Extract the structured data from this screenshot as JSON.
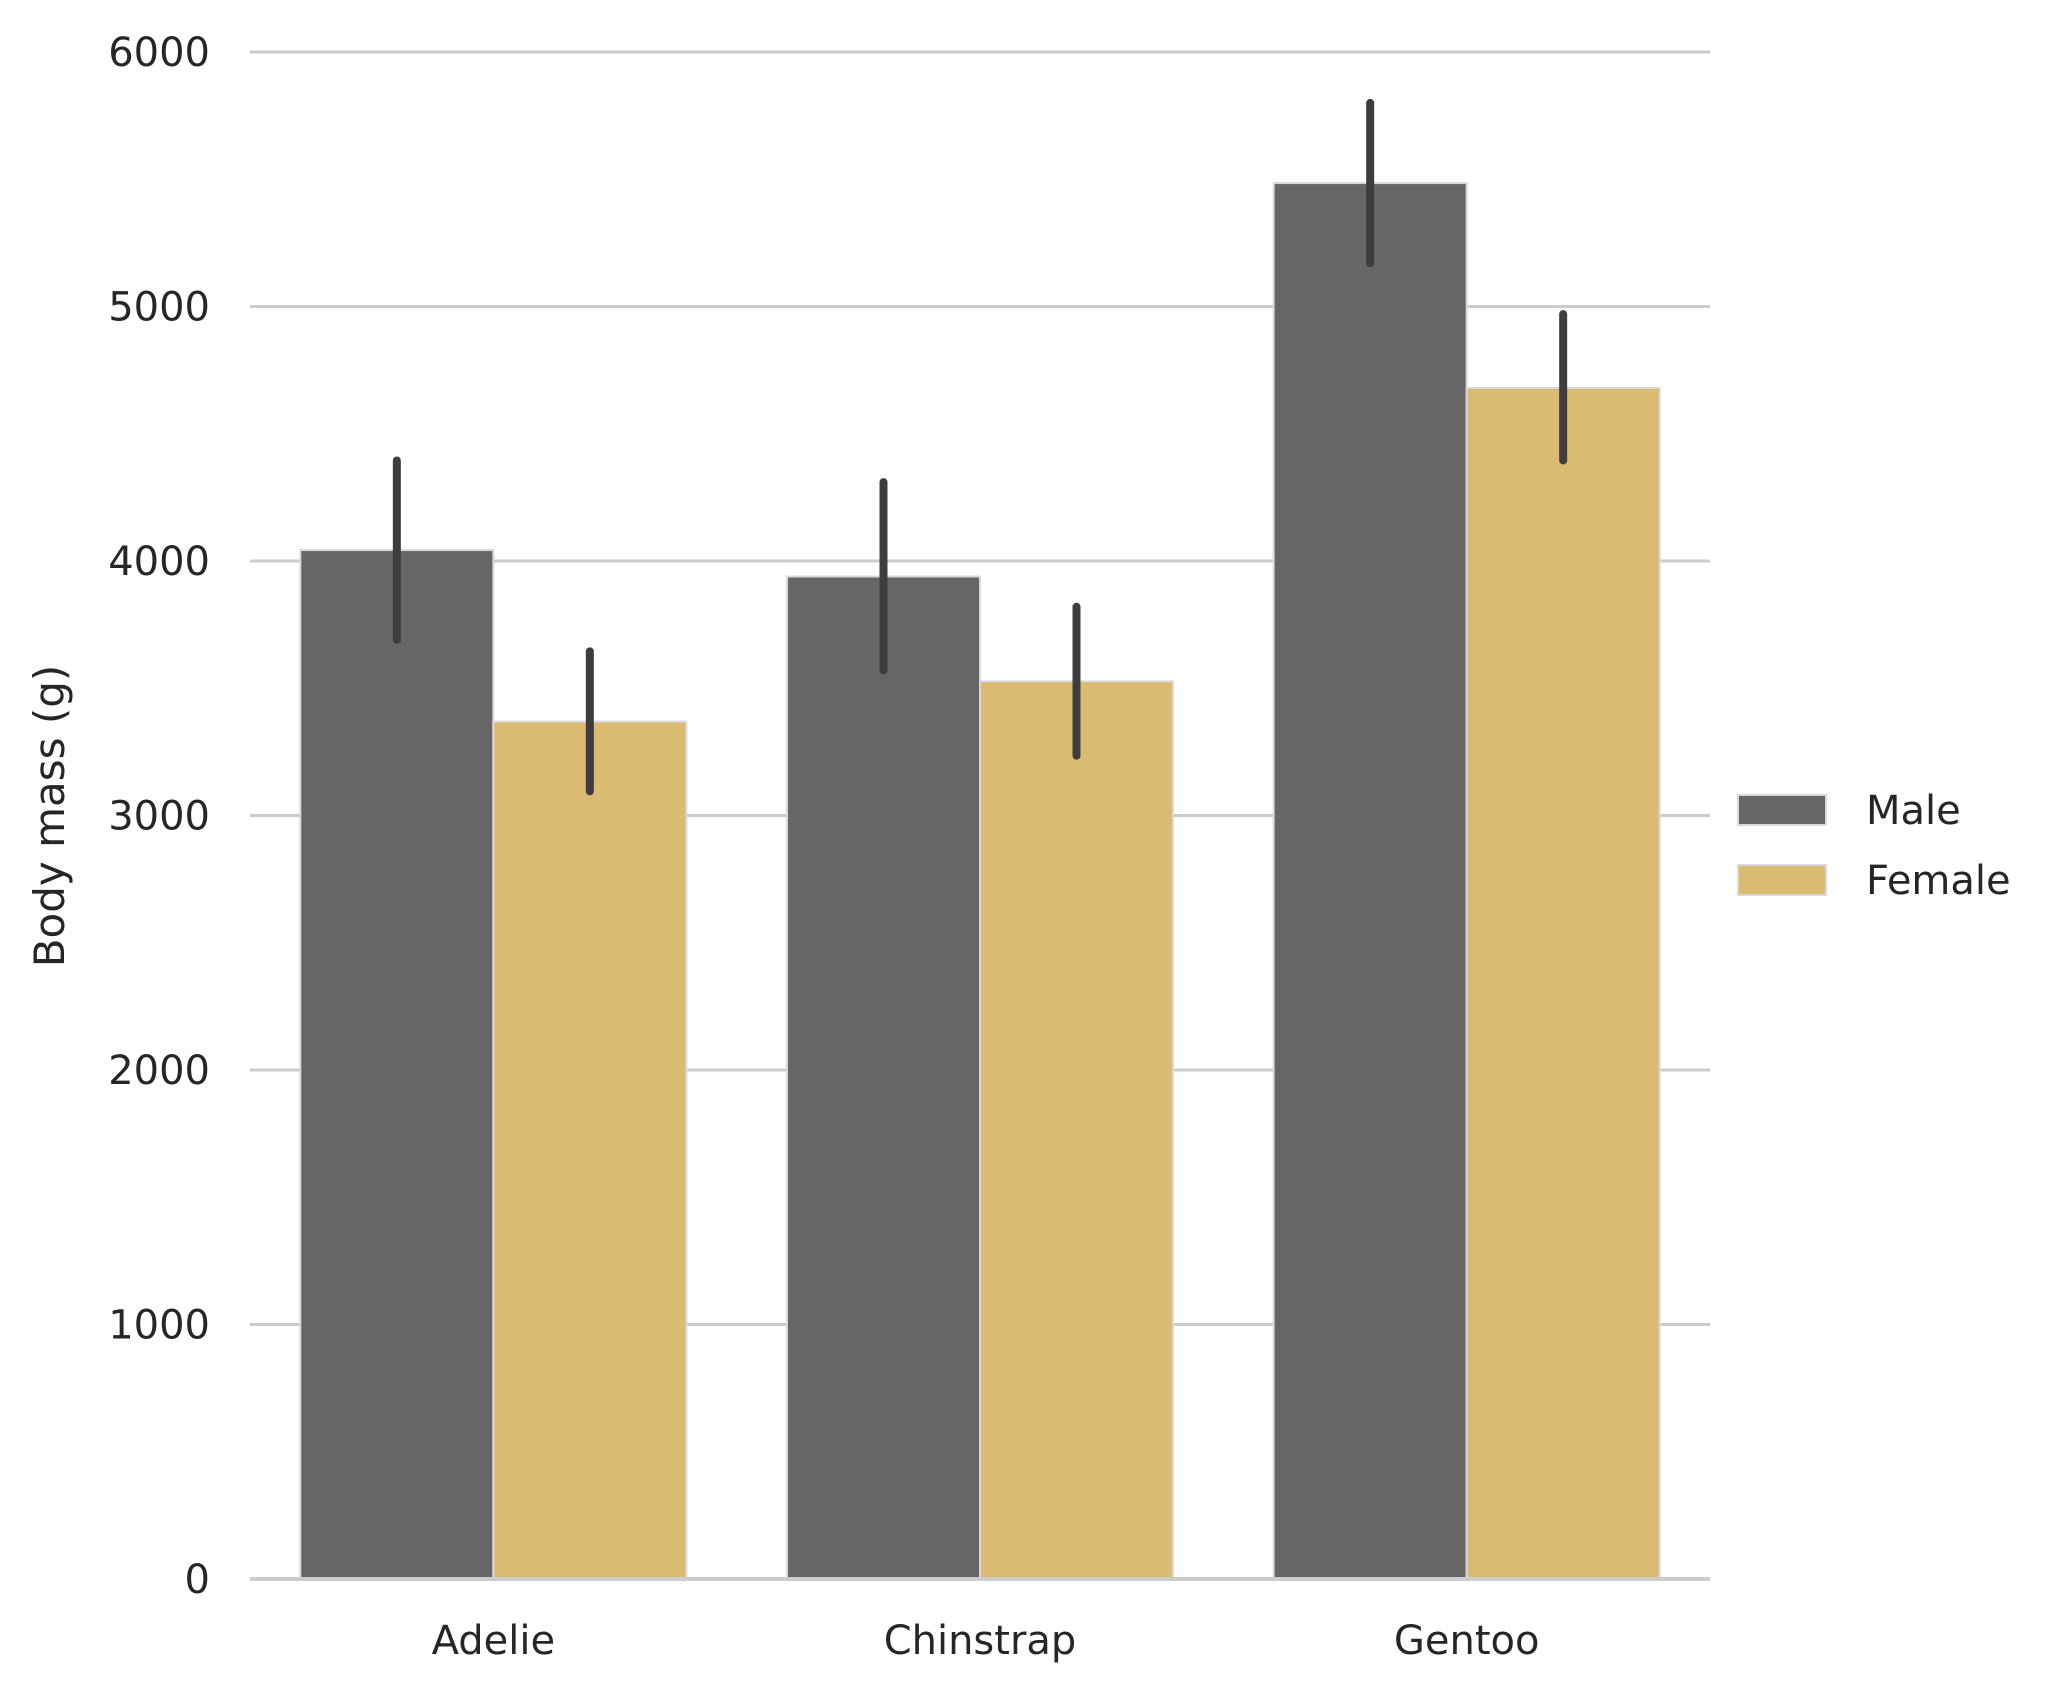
{
  "chart_data": {
    "type": "bar",
    "categories": [
      "Adelie",
      "Chinstrap",
      "Gentoo"
    ],
    "series": [
      {
        "name": "Male",
        "values": [
          4043,
          3939,
          5485
        ],
        "ci_low": [
          3690,
          3570,
          5170
        ],
        "ci_high": [
          4395,
          4310,
          5800
        ],
        "color": "#666666"
      },
      {
        "name": "Female",
        "values": [
          3369,
          3527,
          4680
        ],
        "ci_low": [
          3095,
          3235,
          4395
        ],
        "ci_high": [
          3645,
          3820,
          4970
        ],
        "color": "#dbba72"
      }
    ],
    "xlabel": "",
    "ylabel": "Body mass (g)",
    "ylim": [
      0,
      6000
    ],
    "yticks": [
      0,
      1000,
      2000,
      3000,
      4000,
      5000,
      6000
    ],
    "grid": "horizontal",
    "legend_position": "right"
  }
}
